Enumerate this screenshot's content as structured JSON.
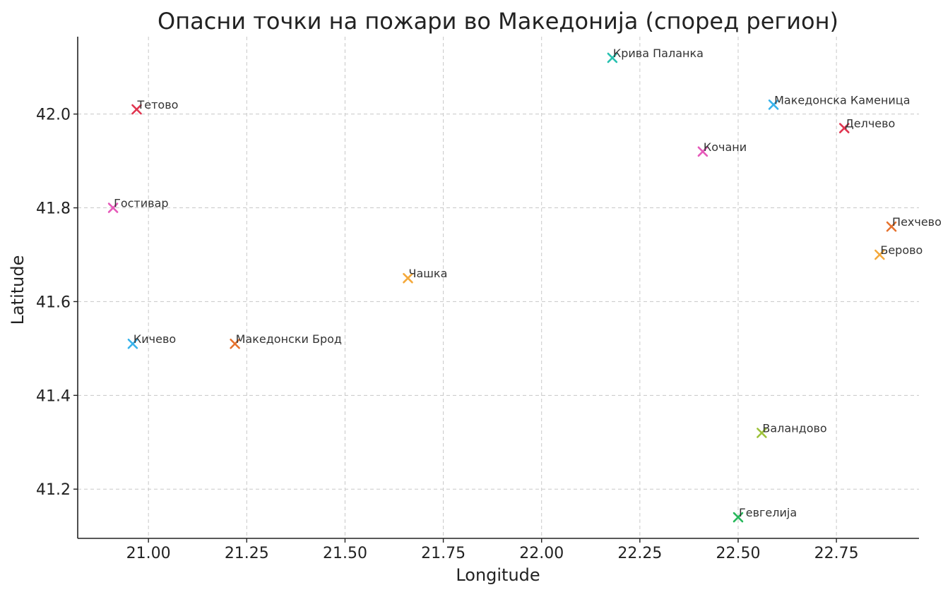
{
  "chart_data": {
    "type": "scatter",
    "title": "Опасни точки на пожари во Македонија (според регион)",
    "xlabel": "Longitude",
    "ylabel": "Latitude",
    "xlim": [
      20.82,
      22.96
    ],
    "ylim": [
      41.095,
      42.165
    ],
    "xticks": [
      21.0,
      21.25,
      21.5,
      21.75,
      22.0,
      22.25,
      22.5,
      22.75
    ],
    "xtick_labels": [
      "21.00",
      "21.25",
      "21.50",
      "21.75",
      "22.00",
      "22.25",
      "22.50",
      "22.75"
    ],
    "yticks": [
      41.2,
      41.4,
      41.6,
      41.8,
      42.0
    ],
    "ytick_labels": [
      "41.2",
      "41.4",
      "41.6",
      "41.8",
      "42.0"
    ],
    "grid": true,
    "marker": "x",
    "points": [
      {
        "label": "Тетово",
        "x": 20.97,
        "y": 42.01,
        "color": "#e0344f"
      },
      {
        "label": "Гостивар",
        "x": 20.91,
        "y": 41.8,
        "color": "#e65aba"
      },
      {
        "label": "Кичево",
        "x": 20.96,
        "y": 41.51,
        "color": "#37b3ec"
      },
      {
        "label": "Македонски Брод",
        "x": 21.22,
        "y": 41.51,
        "color": "#e6722e"
      },
      {
        "label": "Чашка",
        "x": 21.66,
        "y": 41.65,
        "color": "#f4a93b"
      },
      {
        "label": "Крива Паланка",
        "x": 22.18,
        "y": 42.12,
        "color": "#28c1b0"
      },
      {
        "label": "Кочани",
        "x": 22.41,
        "y": 41.92,
        "color": "#e65aba"
      },
      {
        "label": "Македонска Каменица",
        "x": 22.59,
        "y": 42.02,
        "color": "#37b3ec"
      },
      {
        "label": "Делчево",
        "x": 22.77,
        "y": 41.97,
        "color": "#e0344f"
      },
      {
        "label": "Пехчево",
        "x": 22.89,
        "y": 41.76,
        "color": "#e6722e"
      },
      {
        "label": "Берово",
        "x": 22.86,
        "y": 41.7,
        "color": "#f4a93b"
      },
      {
        "label": "Валандово",
        "x": 22.56,
        "y": 41.32,
        "color": "#9dc23a"
      },
      {
        "label": "Гевгелија",
        "x": 22.5,
        "y": 41.14,
        "color": "#28b85c"
      }
    ]
  }
}
